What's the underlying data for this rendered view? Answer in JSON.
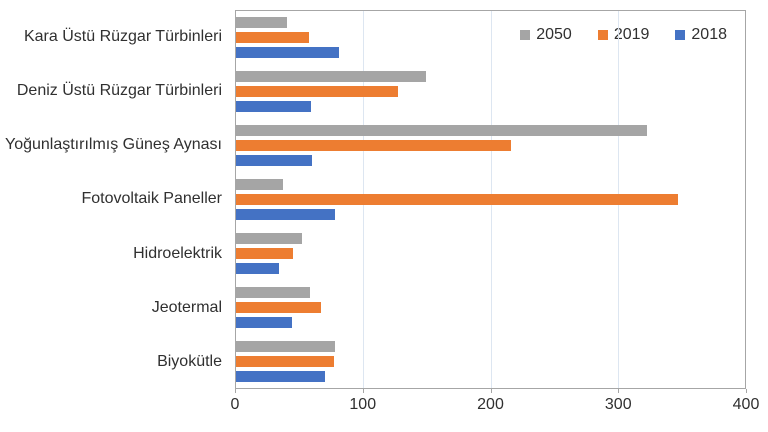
{
  "chart_data": {
    "type": "bar",
    "orientation": "horizontal",
    "title": "",
    "xlabel": "",
    "ylabel": "",
    "categories": [
      "Kara Üstü Rüzgar Türbinleri",
      "Deniz Üstü Rüzgar Türbinleri",
      "Yoğunlaştırılmış Güneş Aynası",
      "Fotovoltaik Paneller",
      "Hidroelektrik",
      "Jeotermal",
      "Biyokütle"
    ],
    "series": [
      {
        "name": "2050",
        "color": "#A5A5A5",
        "values": [
          40,
          149,
          323,
          37,
          52,
          58,
          78
        ]
      },
      {
        "name": "2019",
        "color": "#ED7D31",
        "values": [
          57,
          127,
          216,
          347,
          45,
          67,
          77
        ]
      },
      {
        "name": "2018",
        "color": "#4472C4",
        "values": [
          81,
          59,
          60,
          78,
          34,
          44,
          70
        ]
      }
    ],
    "xlim": [
      0,
      400
    ],
    "xticks": [
      0,
      100,
      200,
      300,
      400
    ],
    "grid": true,
    "legend_position": "top-right"
  },
  "colors": {
    "gridline": "#dde6f1",
    "border": "#a6a6a6",
    "text": "#303030",
    "background": "#ffffff"
  }
}
